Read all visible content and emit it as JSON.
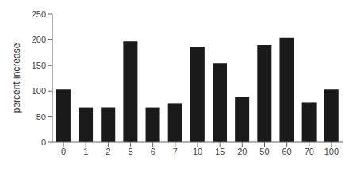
{
  "chart_data": {
    "type": "bar",
    "categories": [
      "0",
      "1",
      "2",
      "5",
      "6",
      "7",
      "10",
      "15",
      "20",
      "50",
      "60",
      "70",
      "100"
    ],
    "values": [
      103,
      67,
      67,
      197,
      67,
      75,
      185,
      154,
      88,
      190,
      204,
      78,
      103
    ],
    "color": "#1a1a1a",
    "ylabel": "percent increase",
    "ylim": [
      0,
      250
    ],
    "yticks": [
      0,
      50,
      100,
      150,
      200,
      250
    ]
  }
}
